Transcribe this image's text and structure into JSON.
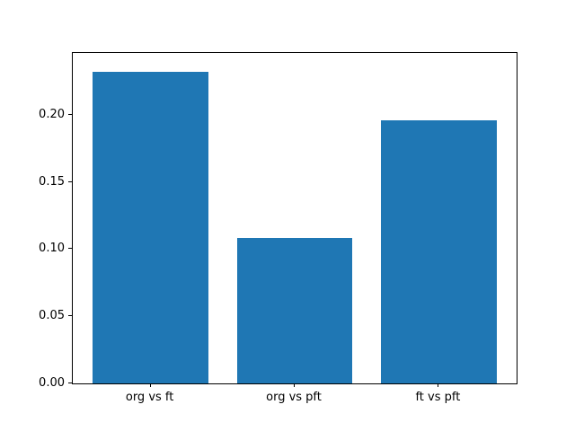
{
  "chart_data": {
    "type": "bar",
    "categories": [
      "org vs ft",
      "org vs pft",
      "ft vs pft"
    ],
    "values": [
      0.232,
      0.108,
      0.196
    ],
    "title": "",
    "xlabel": "",
    "ylabel": "",
    "ylim": [
      0,
      0.246
    ],
    "xlim": [
      -0.54,
      2.54
    ],
    "bar_width": 0.8,
    "bar_color": "#1f77b4",
    "y_ticks": [
      {
        "value": 0.0,
        "label": "0.00"
      },
      {
        "value": 0.05,
        "label": "0.05"
      },
      {
        "value": 0.1,
        "label": "0.10"
      },
      {
        "value": 0.15,
        "label": "0.15"
      },
      {
        "value": 0.2,
        "label": "0.20"
      }
    ],
    "grid": false,
    "legend": null,
    "background_color": "#ffffff",
    "axis_color": "#000000"
  }
}
